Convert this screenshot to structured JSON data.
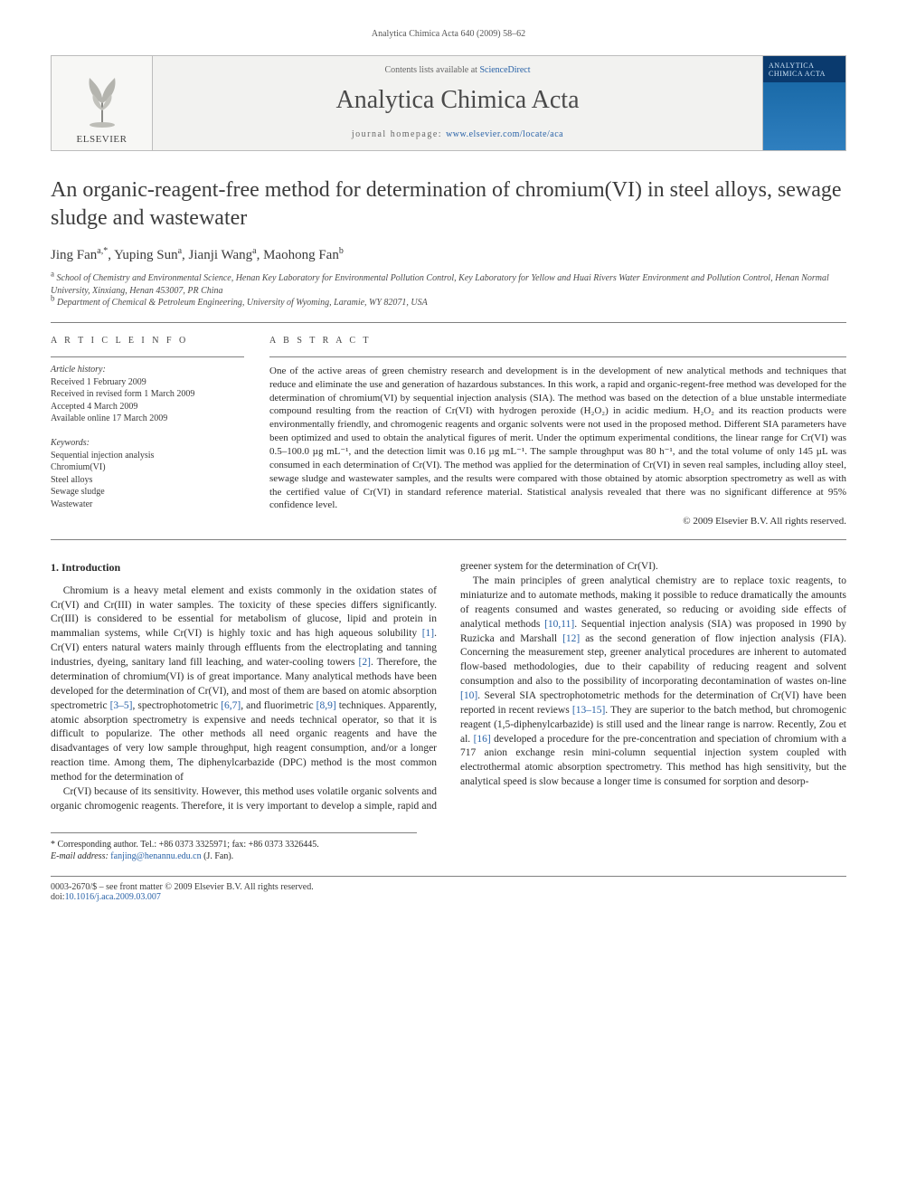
{
  "running_head": "Analytica Chimica Acta 640 (2009) 58–62",
  "masthead": {
    "publisher": "ELSEVIER",
    "contents_prefix": "Contents lists available at ",
    "contents_link": "ScienceDirect",
    "journal_title": "Analytica Chimica Acta",
    "homepage_prefix": "journal homepage: ",
    "homepage_link": "www.elsevier.com/locate/aca",
    "cover_caption": "ANALYTICA CHIMICA ACTA"
  },
  "title": "An organic-reagent-free method for determination of chromium(VI) in steel alloys, sewage sludge and wastewater",
  "authors_html": "Jing Fan<sup>a,*</sup>, Yuping Sun<sup>a</sup>, Jianji Wang<sup>a</sup>, Maohong Fan<sup>b</sup>",
  "affiliations": [
    "a School of Chemistry and Environmental Science, Henan Key Laboratory for Environmental Pollution Control, Key Laboratory for Yellow and Huai Rivers Water Environment and Pollution Control, Henan Normal University, Xinxiang, Henan 453007, PR China",
    "b Department of Chemical & Petroleum Engineering, University of Wyoming, Laramie, WY 82071, USA"
  ],
  "info": {
    "head": "A R T I C L E  I N F O",
    "history_label": "Article history:",
    "history": [
      "Received 1 February 2009",
      "Received in revised form 1 March 2009",
      "Accepted 4 March 2009",
      "Available online 17 March 2009"
    ],
    "keywords_label": "Keywords:",
    "keywords": [
      "Sequential injection analysis",
      "Chromium(VI)",
      "Steel alloys",
      "Sewage sludge",
      "Wastewater"
    ]
  },
  "abstract": {
    "head": "A B S T R A C T",
    "text": "One of the active areas of green chemistry research and development is in the development of new analytical methods and techniques that reduce and eliminate the use and generation of hazardous substances. In this work, a rapid and organic-regent-free method was developed for the determination of chromium(VI) by sequential injection analysis (SIA). The method was based on the detection of a blue unstable intermediate compound resulting from the reaction of Cr(VI) with hydrogen peroxide (H₂O₂) in acidic medium. H₂O₂ and its reaction products were environmentally friendly, and chromogenic reagents and organic solvents were not used in the proposed method. Different SIA parameters have been optimized and used to obtain the analytical figures of merit. Under the optimum experimental conditions, the linear range for Cr(VI) was 0.5–100.0 µg mL⁻¹, and the detection limit was 0.16 µg mL⁻¹. The sample throughput was 80 h⁻¹, and the total volume of only 145 µL was consumed in each determination of Cr(VI). The method was applied for the determination of Cr(VI) in seven real samples, including alloy steel, sewage sludge and wastewater samples, and the results were compared with those obtained by atomic absorption spectrometry as well as with the certified value of Cr(VI) in standard reference material. Statistical analysis revealed that there was no significant difference at 95% confidence level.",
    "copyright": "© 2009 Elsevier B.V. All rights reserved."
  },
  "body": {
    "section_heading": "1. Introduction",
    "col1_p1": "Chromium is a heavy metal element and exists commonly in the oxidation states of Cr(VI) and Cr(III) in water samples. The toxicity of these species differs significantly. Cr(III) is considered to be essential for metabolism of glucose, lipid and protein in mammalian systems, while Cr(VI) is highly toxic and has high aqueous solubility [1]. Cr(VI) enters natural waters mainly through effluents from the electroplating and tanning industries, dyeing, sanitary land fill leaching, and water-cooling towers [2]. Therefore, the determination of chromium(VI) is of great importance. Many analytical methods have been developed for the determination of Cr(VI), and most of them are based on atomic absorption spectrometric [3–5], spectrophotometric [6,7], and fluorimetric [8,9] techniques. Apparently, atomic absorption spectrometry is expensive and needs technical operator, so that it is difficult to popularize. The other methods all need organic reagents and have the disadvantages of very low sample throughput, high reagent consumption, and/or a longer reaction time. Among them, The diphenylcarbazide (DPC) method is the most common method for the determination of",
    "col2_p1": "Cr(VI) because of its sensitivity. However, this method uses volatile organic solvents and organic chromogenic reagents. Therefore, it is very important to develop a simple, rapid and greener system for the determination of Cr(VI).",
    "col2_p2": "The main principles of green analytical chemistry are to replace toxic reagents, to miniaturize and to automate methods, making it possible to reduce dramatically the amounts of reagents consumed and wastes generated, so reducing or avoiding side effects of analytical methods [10,11]. Sequential injection analysis (SIA) was proposed in 1990 by Ruzicka and Marshall [12] as the second generation of flow injection analysis (FIA). Concerning the measurement step, greener analytical procedures are inherent to automated flow-based methodologies, due to their capability of reducing reagent and solvent consumption and also to the possibility of incorporating decontamination of wastes on-line [10]. Several SIA spectrophotometric methods for the determination of Cr(VI) have been reported in recent reviews [13–15]. They are superior to the batch method, but chromogenic reagent (1,5-diphenylcarbazide) is still used and the linear range is narrow. Recently, Zou et al. [16] developed a procedure for the pre-concentration and speciation of chromium with a 717 anion exchange resin mini-column sequential injection system coupled with electrothermal atomic absorption spectrometry. This method has high sensitivity, but the analytical speed is slow because a longer time is consumed for sorption and desorp-"
  },
  "correspondence": {
    "line1": "* Corresponding author. Tel.: +86 0373 3325971; fax: +86 0373 3326445.",
    "line2_prefix": "E-mail address: ",
    "email": "fanjing@henannu.edu.cn",
    "line2_suffix": " (J. Fan)."
  },
  "legal": {
    "left_line1": "0003-2670/$ – see front matter © 2009 Elsevier B.V. All rights reserved.",
    "left_line2_prefix": "doi:",
    "left_line2_link": "10.1016/j.aca.2009.03.007"
  },
  "colors": {
    "link": "#2a63a8",
    "rule": "#808080",
    "text": "#2a2a2a",
    "masthead_bg": "#f2f2f0"
  }
}
